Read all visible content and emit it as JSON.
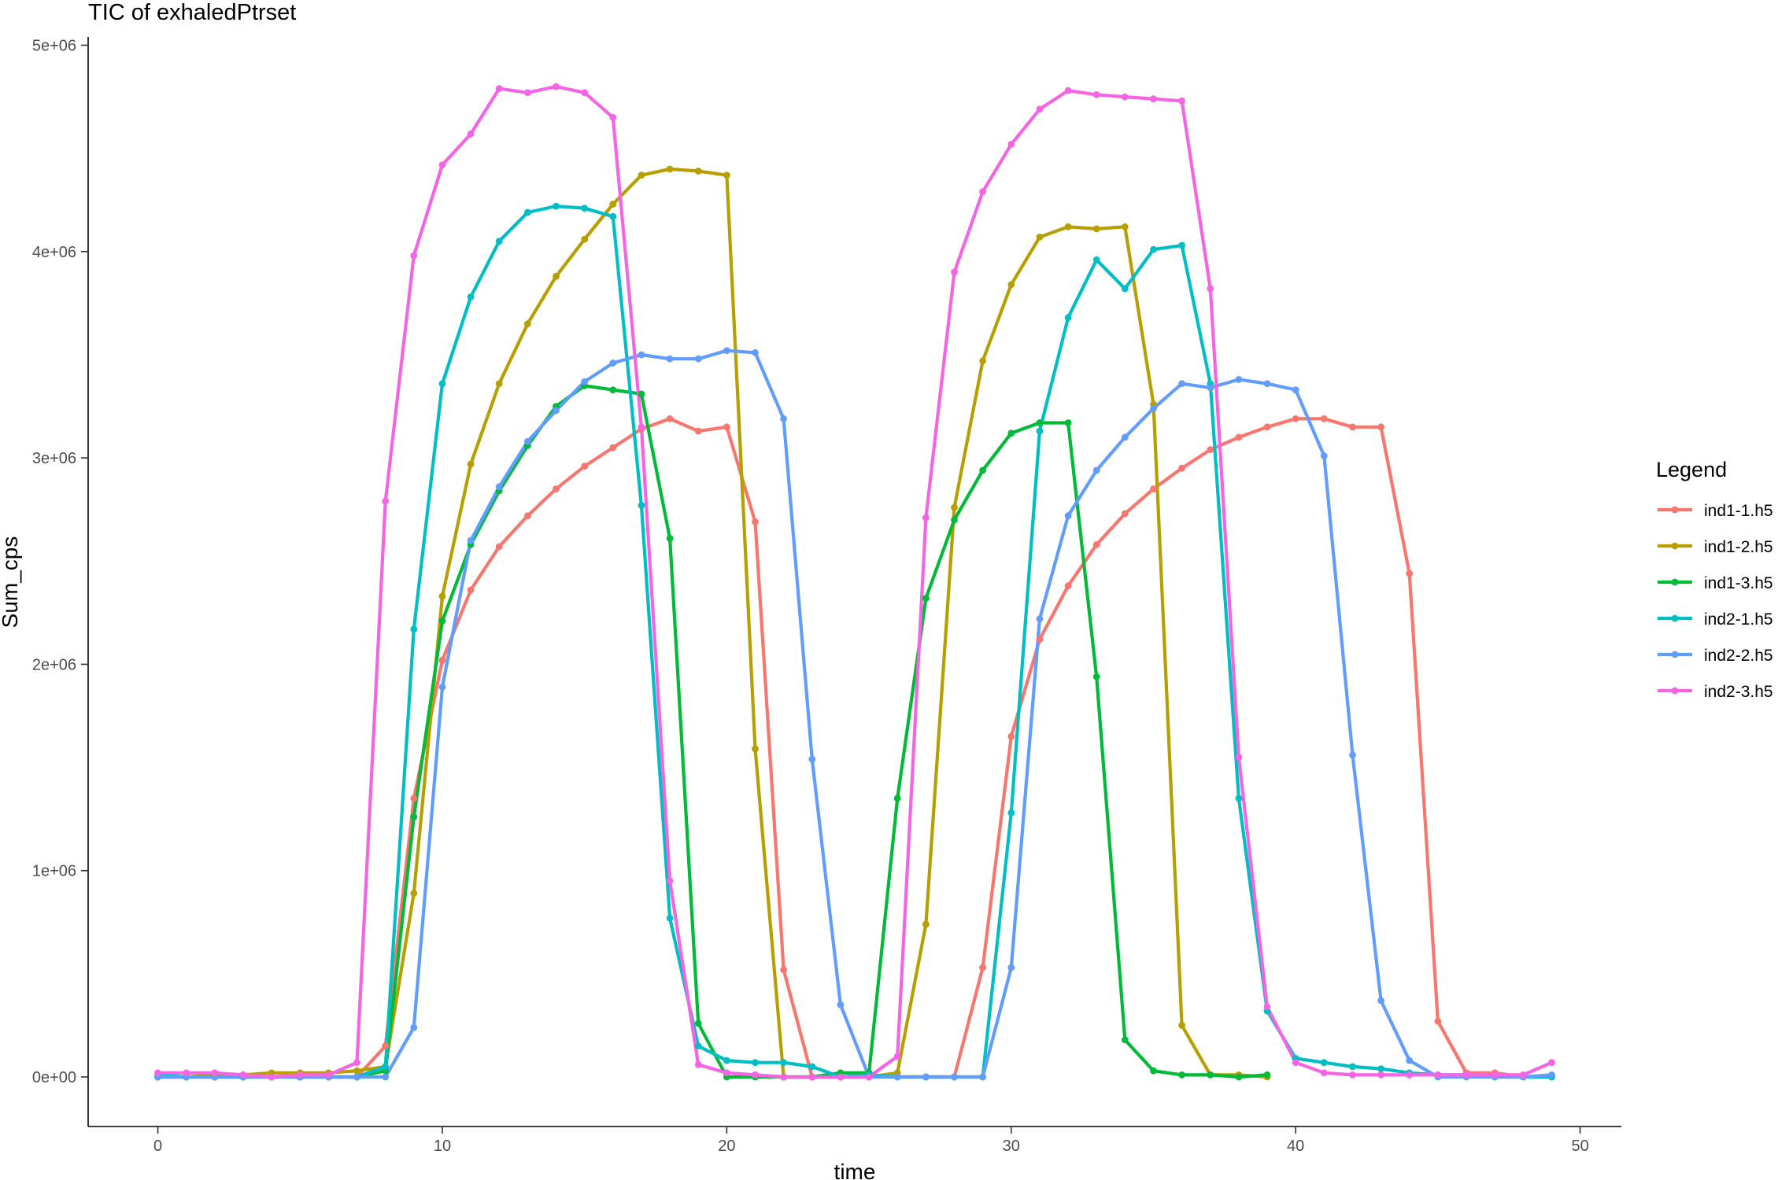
{
  "chart_data": {
    "type": "line",
    "title": "TIC of exhaledPtrset",
    "xlabel": "time",
    "ylabel": "Sum_cps",
    "xlim": [
      -2.45,
      51.45
    ],
    "ylim": [
      -240000,
      5040000
    ],
    "x_ticks": [
      0,
      10,
      20,
      30,
      40,
      50
    ],
    "x_tick_labels": [
      "0",
      "10",
      "20",
      "30",
      "40",
      "50"
    ],
    "y_ticks": [
      0,
      1000000,
      2000000,
      3000000,
      4000000,
      5000000
    ],
    "y_tick_labels": [
      "0e+00",
      "1e+06",
      "2e+06",
      "3e+06",
      "4e+06",
      "5e+06"
    ],
    "grid": false,
    "legend": {
      "title": "Legend",
      "position": "right"
    },
    "x": [
      0,
      1,
      2,
      3,
      4,
      5,
      6,
      7,
      8,
      9,
      10,
      11,
      12,
      13,
      14,
      15,
      16,
      17,
      18,
      19,
      20,
      21,
      22,
      23,
      24,
      25,
      26,
      27,
      28,
      29,
      30,
      31,
      32,
      33,
      34,
      35,
      36,
      37,
      38,
      39,
      40,
      41,
      42,
      43,
      44,
      45,
      46,
      47,
      48,
      49
    ],
    "series": [
      {
        "name": "ind1-1.h5",
        "color": "#F8766D",
        "values": [
          0,
          0,
          0,
          0,
          0,
          0,
          0,
          0,
          150000,
          1350000,
          2020000,
          2360000,
          2570000,
          2720000,
          2850000,
          2960000,
          3050000,
          3140000,
          3190000,
          3130000,
          3150000,
          2690000,
          520000,
          0,
          0,
          0,
          0,
          0,
          0,
          530000,
          1650000,
          2120000,
          2380000,
          2580000,
          2730000,
          2850000,
          2950000,
          3040000,
          3100000,
          3150000,
          3190000,
          3190000,
          3150000,
          3150000,
          2440000,
          270000,
          20000,
          20000,
          0,
          0
        ]
      },
      {
        "name": "ind1-2.h5",
        "color": "#B79F00",
        "values": [
          0,
          0,
          10000,
          10000,
          20000,
          20000,
          20000,
          30000,
          50000,
          890000,
          2330000,
          2970000,
          3360000,
          3650000,
          3880000,
          4060000,
          4230000,
          4370000,
          4400000,
          4390000,
          4370000,
          1590000,
          0,
          0,
          0,
          0,
          20000,
          740000,
          2760000,
          3470000,
          3840000,
          4070000,
          4120000,
          4110000,
          4120000,
          3260000,
          250000,
          10000,
          10000,
          0,
          null,
          null,
          null,
          null,
          null,
          null,
          null,
          null,
          null,
          null
        ]
      },
      {
        "name": "ind1-3.h5",
        "color": "#00BA38",
        "values": [
          0,
          0,
          0,
          0,
          0,
          0,
          0,
          0,
          30000,
          1260000,
          2210000,
          2580000,
          2840000,
          3060000,
          3250000,
          3350000,
          3330000,
          3310000,
          2610000,
          260000,
          0,
          0,
          0,
          0,
          20000,
          20000,
          1350000,
          2320000,
          2700000,
          2940000,
          3120000,
          3170000,
          3170000,
          1940000,
          180000,
          30000,
          10000,
          10000,
          0,
          10000,
          null,
          null,
          null,
          null,
          null,
          null,
          null,
          null,
          null,
          null
        ]
      },
      {
        "name": "ind2-1.h5",
        "color": "#00BFC4",
        "values": [
          10000,
          0,
          0,
          0,
          0,
          0,
          0,
          0,
          50000,
          2170000,
          3360000,
          3780000,
          4050000,
          4190000,
          4220000,
          4210000,
          4170000,
          2770000,
          770000,
          150000,
          80000,
          70000,
          70000,
          50000,
          0,
          10000,
          0,
          0,
          0,
          0,
          1280000,
          3130000,
          3680000,
          3960000,
          3820000,
          4010000,
          4030000,
          3360000,
          1350000,
          320000,
          90000,
          70000,
          50000,
          40000,
          20000,
          10000,
          10000,
          0,
          0,
          0
        ]
      },
      {
        "name": "ind2-2.h5",
        "color": "#619CFF",
        "values": [
          0,
          0,
          0,
          0,
          0,
          0,
          0,
          0,
          0,
          240000,
          1890000,
          2600000,
          2860000,
          3080000,
          3230000,
          3370000,
          3460000,
          3500000,
          3480000,
          3480000,
          3520000,
          3510000,
          3190000,
          1540000,
          350000,
          0,
          0,
          0,
          0,
          0,
          530000,
          2220000,
          2720000,
          2940000,
          3100000,
          3240000,
          3360000,
          3340000,
          3380000,
          3360000,
          3330000,
          3010000,
          1560000,
          370000,
          80000,
          0,
          0,
          0,
          0,
          10000
        ]
      },
      {
        "name": "ind2-3.h5",
        "color": "#F564E3",
        "values": [
          20000,
          20000,
          20000,
          10000,
          0,
          10000,
          10000,
          70000,
          2790000,
          3980000,
          4420000,
          4570000,
          4790000,
          4770000,
          4800000,
          4770000,
          4650000,
          3150000,
          950000,
          60000,
          20000,
          10000,
          0,
          0,
          0,
          0,
          100000,
          2710000,
          3900000,
          4290000,
          4520000,
          4690000,
          4780000,
          4760000,
          4750000,
          4740000,
          4730000,
          3820000,
          1550000,
          340000,
          70000,
          20000,
          10000,
          10000,
          10000,
          10000,
          10000,
          10000,
          10000,
          70000
        ]
      }
    ]
  }
}
